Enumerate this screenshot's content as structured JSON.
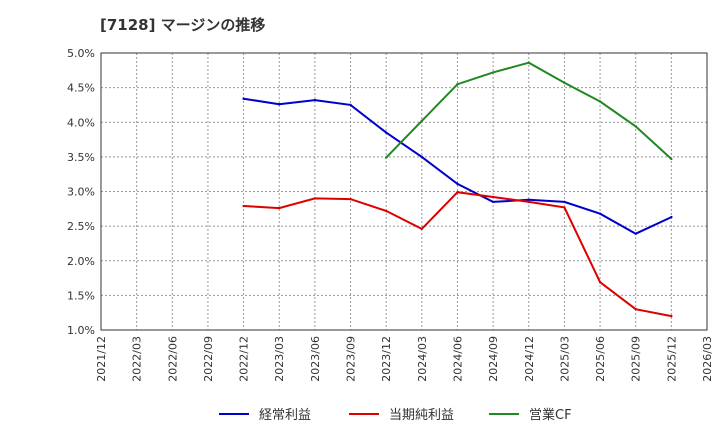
{
  "chart_data": {
    "type": "line",
    "title": "[7128]  マージンの推移",
    "xlabel": "",
    "ylabel": "",
    "x_ticks": [
      "2021/12",
      "2022/03",
      "2022/06",
      "2022/09",
      "2022/12",
      "2023/03",
      "2023/06",
      "2023/09",
      "2023/12",
      "2024/03",
      "2024/06",
      "2024/09",
      "2024/12",
      "2025/03",
      "2025/06",
      "2025/09",
      "2025/12",
      "2026/03"
    ],
    "y_ticks": [
      "1.0%",
      "1.5%",
      "2.0%",
      "2.5%",
      "3.0%",
      "3.5%",
      "4.0%",
      "4.5%",
      "5.0%"
    ],
    "ylim": [
      1.0,
      5.0
    ],
    "grid": true,
    "legend_position": "bottom",
    "series": [
      {
        "name": "経常利益",
        "color": "#0000cc",
        "x": [
          "2022/12",
          "2023/03",
          "2023/06",
          "2023/09",
          "2023/12",
          "2024/03",
          "2024/06",
          "2024/09",
          "2024/12",
          "2025/03",
          "2025/06",
          "2025/09",
          "2025/12"
        ],
        "values": [
          4.34,
          4.26,
          4.32,
          4.25,
          3.85,
          3.5,
          3.11,
          2.85,
          2.88,
          2.85,
          2.68,
          2.39,
          2.63
        ]
      },
      {
        "name": "当期純利益",
        "color": "#dd0000",
        "x": [
          "2022/12",
          "2023/03",
          "2023/06",
          "2023/09",
          "2023/12",
          "2024/03",
          "2024/06",
          "2024/09",
          "2024/12",
          "2025/03",
          "2025/06",
          "2025/09",
          "2025/12"
        ],
        "values": [
          2.79,
          2.76,
          2.9,
          2.89,
          2.72,
          2.46,
          2.99,
          2.92,
          2.85,
          2.77,
          1.69,
          1.3,
          1.2
        ]
      },
      {
        "name": "営業CF",
        "color": "#228822",
        "x": [
          "2023/12",
          "2024/03",
          "2024/06",
          "2024/09",
          "2024/12",
          "2025/03",
          "2025/06",
          "2025/09",
          "2025/12"
        ],
        "values": [
          3.49,
          4.02,
          4.55,
          4.72,
          4.86,
          4.57,
          4.3,
          3.94,
          3.47
        ]
      }
    ]
  }
}
